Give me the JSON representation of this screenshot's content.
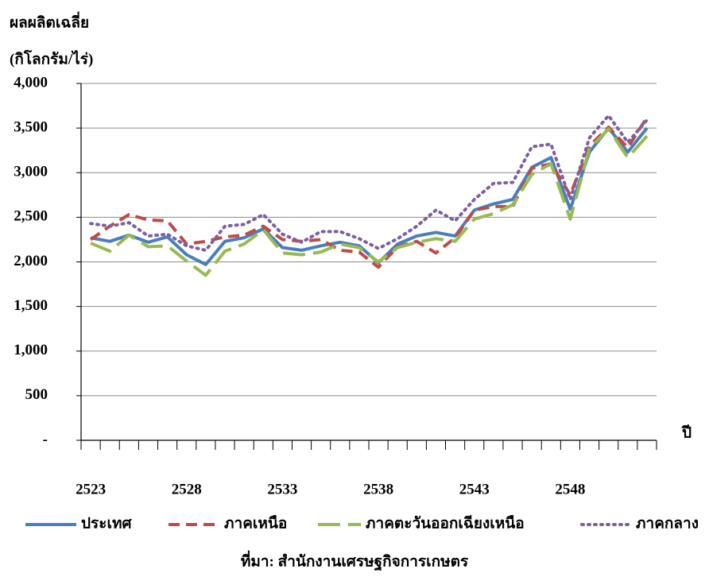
{
  "chart_data": {
    "type": "line",
    "ylabel": [
      "ผลผลิตเฉลี่ย",
      "(กิโลกรัม/ไร่)"
    ],
    "xlabel": "ปี",
    "source": "ที่มา: สำนักงานเศรษฐกิจการเกษตร",
    "categories": [
      "2523",
      null,
      null,
      null,
      null,
      "2528",
      null,
      null,
      null,
      null,
      "2533",
      null,
      null,
      null,
      null,
      "2538",
      null,
      null,
      null,
      null,
      "2543",
      null,
      null,
      null,
      null,
      "2548",
      null,
      null,
      null,
      null
    ],
    "series": [
      {
        "name": "ประเทศ",
        "color": "#4a7ebb",
        "style": "solid",
        "values": [
          2270,
          2230,
          2300,
          2220,
          2280,
          2080,
          1970,
          2230,
          2270,
          2370,
          2160,
          2130,
          2180,
          2220,
          2180,
          1990,
          2200,
          2290,
          2330,
          2290,
          2580,
          2650,
          2700,
          3060,
          3170,
          2590,
          3230,
          3500,
          3230,
          3500
        ]
      },
      {
        "name": "ภาคเหนือ",
        "color": "#be4b48",
        "style": "dashed",
        "values": [
          2250,
          2400,
          2530,
          2470,
          2460,
          2200,
          2230,
          2280,
          2300,
          2400,
          2250,
          2230,
          2250,
          2130,
          2110,
          1940,
          2170,
          2230,
          2100,
          2270,
          2580,
          2620,
          2620,
          3050,
          3100,
          2750,
          3300,
          3510,
          3280,
          3620
        ]
      },
      {
        "name": "ภาคตะวันออกเฉียงเหนือ",
        "color": "#98b954",
        "style": "longdash",
        "values": [
          2210,
          2120,
          2300,
          2170,
          2180,
          2010,
          1850,
          2120,
          2200,
          2360,
          2100,
          2080,
          2110,
          2200,
          2160,
          2000,
          2160,
          2220,
          2260,
          2230,
          2480,
          2540,
          2640,
          2980,
          3100,
          2480,
          3270,
          3490,
          3170,
          3410
        ]
      },
      {
        "name": "ภาคกลาง",
        "color": "#7d60a0",
        "style": "dotted",
        "values": [
          2430,
          2400,
          2440,
          2290,
          2310,
          2180,
          2130,
          2400,
          2420,
          2530,
          2310,
          2220,
          2340,
          2340,
          2260,
          2150,
          2260,
          2400,
          2580,
          2460,
          2700,
          2880,
          2890,
          3290,
          3320,
          2700,
          3390,
          3640,
          3340,
          3590
        ]
      }
    ],
    "ylim": [
      0,
      4000
    ],
    "yticks": [
      {
        "value": 0,
        "label": "-"
      },
      500,
      {
        "value": 1000,
        "label": "1,000"
      },
      {
        "value": 1500,
        "label": "1,500"
      },
      {
        "value": 2000,
        "label": "2,000"
      },
      {
        "value": 2500,
        "label": "2,500"
      },
      {
        "value": 3000,
        "label": "3,000"
      },
      {
        "value": 3500,
        "label": "3,500"
      },
      {
        "value": 4000,
        "label": "4,000"
      }
    ],
    "grid": true
  }
}
